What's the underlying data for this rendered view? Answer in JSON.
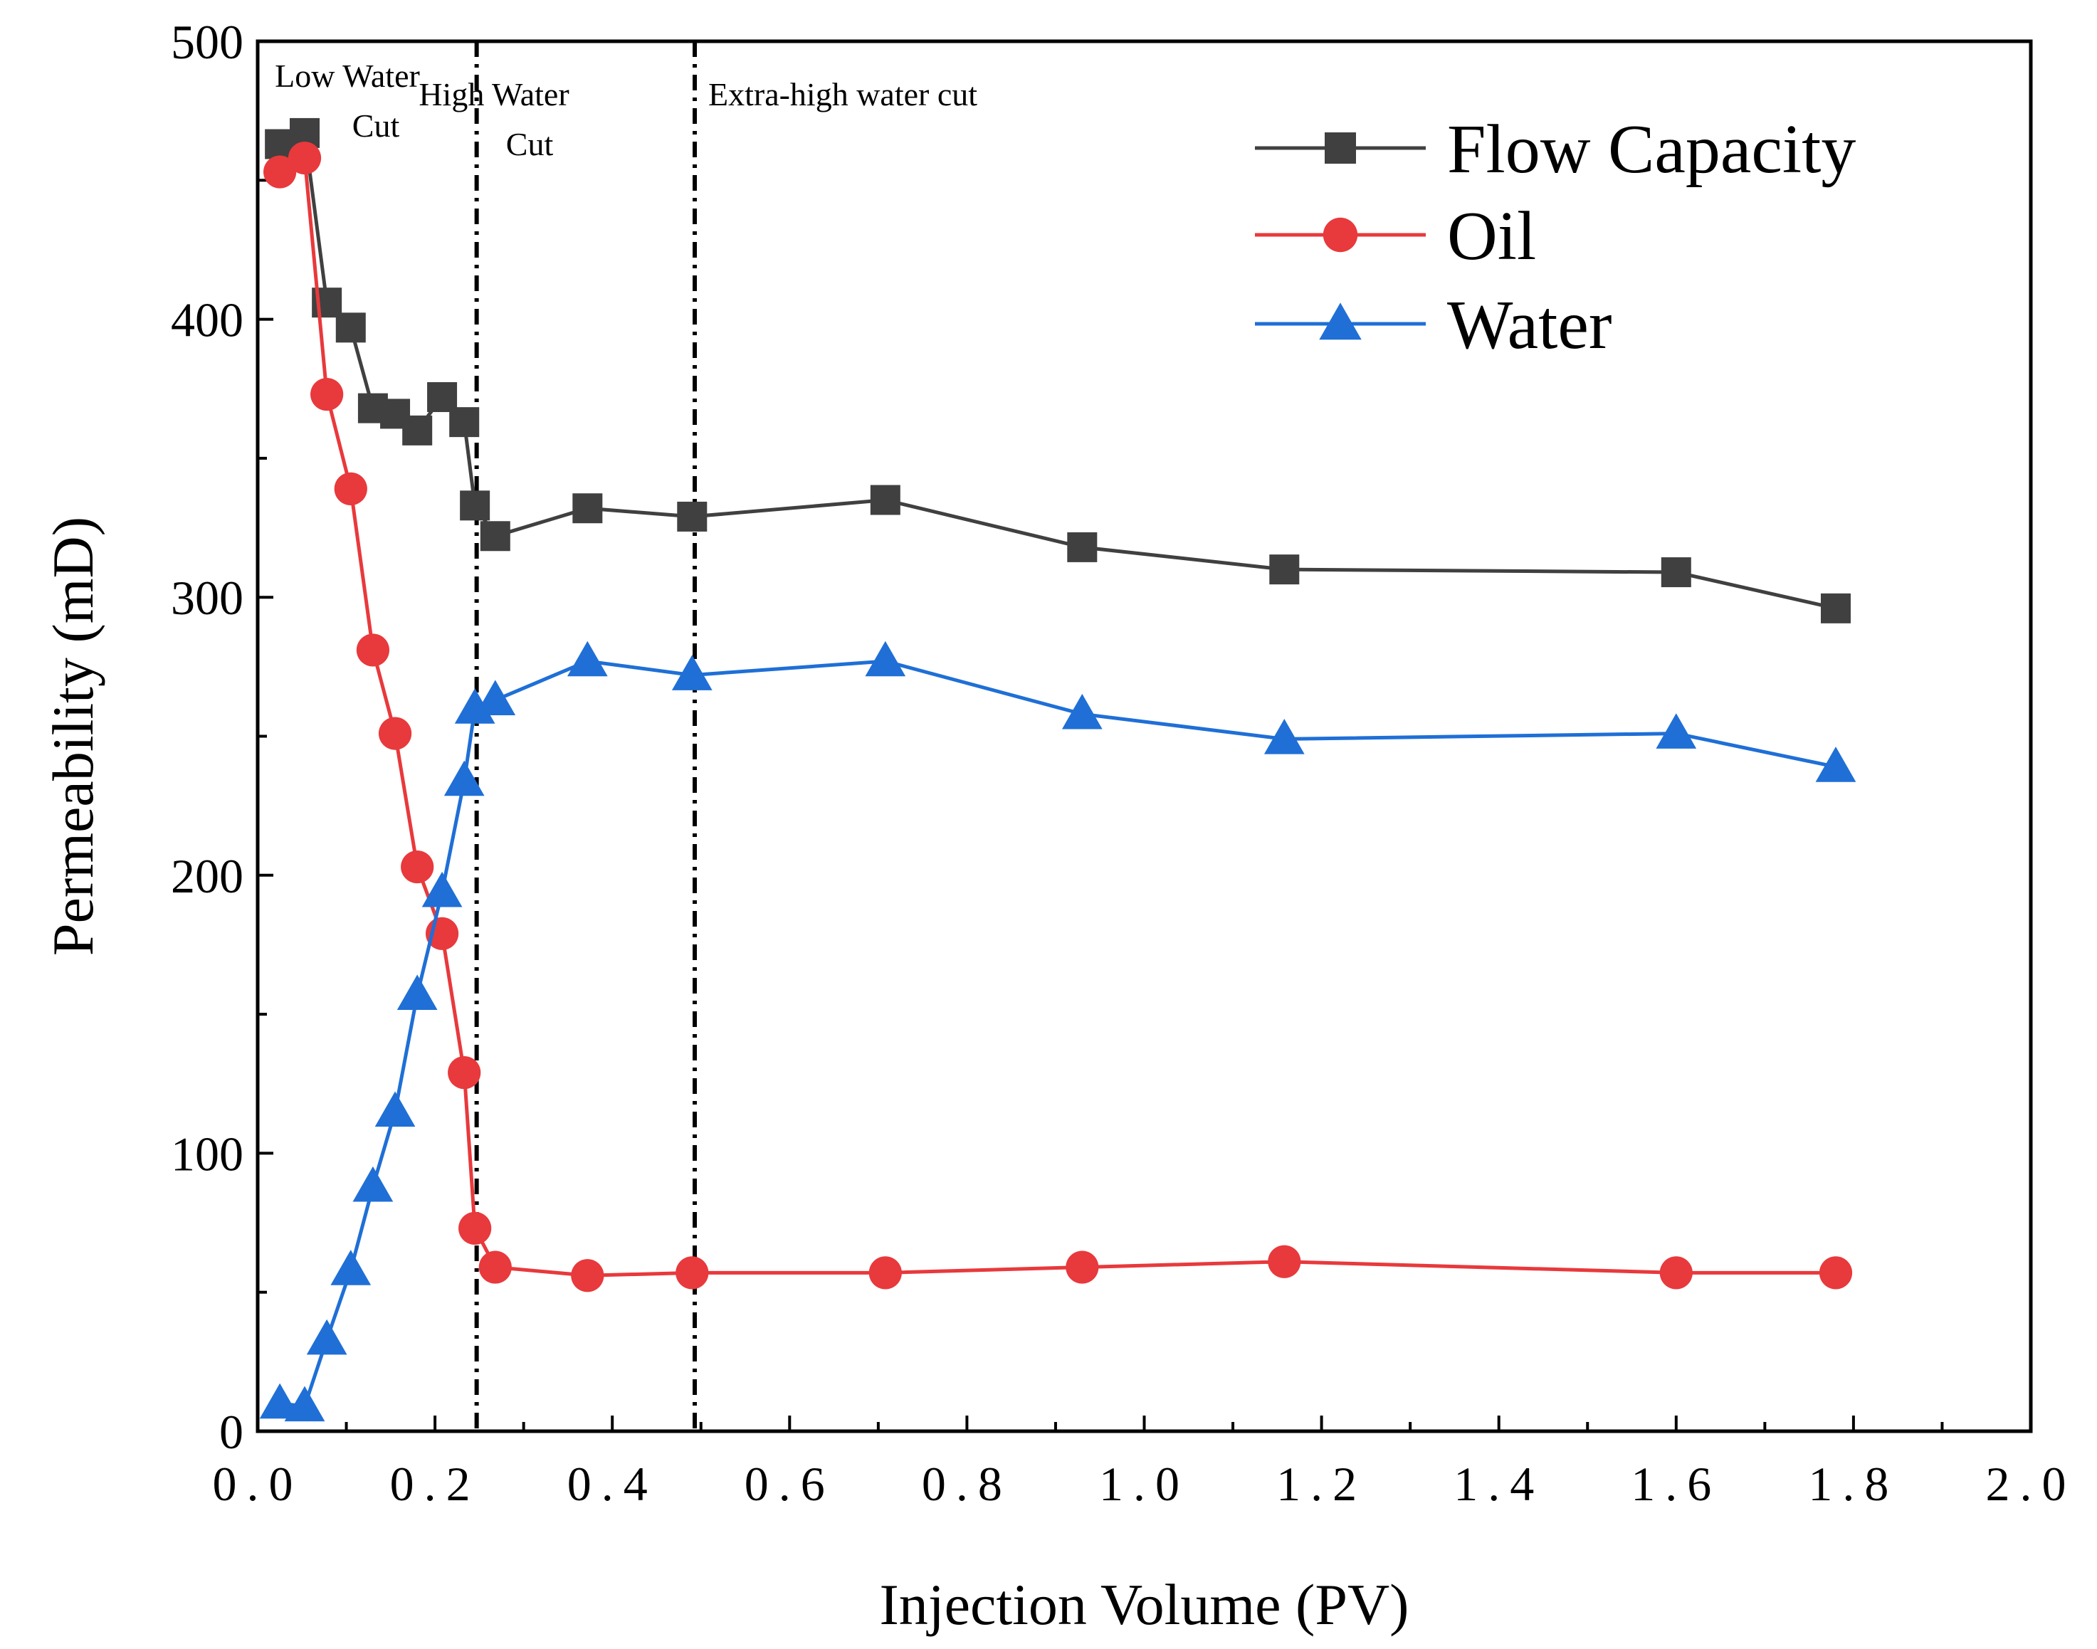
{
  "chart_data": {
    "type": "line",
    "title": "",
    "xlabel": "Injection Volume (PV)",
    "ylabel": "Permeability (mD)",
    "xlim": [
      0.0,
      2.0
    ],
    "ylim": [
      0,
      500
    ],
    "xticks": [
      0.0,
      0.2,
      0.4,
      0.6,
      0.8,
      1.0,
      1.2,
      1.4,
      1.6,
      1.8,
      2.0
    ],
    "xtick_labels": [
      "0.0",
      "0.2",
      "0.4",
      "0.6",
      "0.8",
      "1.0",
      "1.2",
      "1.4",
      "1.6",
      "1.8",
      "2.0"
    ],
    "yticks": [
      0,
      100,
      200,
      300,
      400,
      500
    ],
    "ytick_labels": [
      "0",
      "100",
      "200",
      "300",
      "400",
      "500"
    ],
    "grid": false,
    "legend_position": "top-right",
    "series": [
      {
        "name": "Flow Capacity",
        "color": "#404040",
        "marker": "square",
        "x": [
          0.025,
          0.053,
          0.078,
          0.105,
          0.13,
          0.155,
          0.18,
          0.208,
          0.233,
          0.245,
          0.268,
          0.372,
          0.49,
          0.708,
          0.93,
          1.158,
          1.6,
          1.78
        ],
        "y": [
          463,
          467,
          406,
          397,
          368,
          366,
          360,
          372,
          363,
          333,
          322,
          332,
          329,
          335,
          318,
          310,
          309,
          296
        ]
      },
      {
        "name": "Oil",
        "color": "#E8393C",
        "marker": "circle",
        "x": [
          0.025,
          0.053,
          0.078,
          0.105,
          0.13,
          0.155,
          0.18,
          0.208,
          0.233,
          0.245,
          0.268,
          0.372,
          0.49,
          0.708,
          0.93,
          1.158,
          1.6,
          1.78
        ],
        "y": [
          453,
          458,
          373,
          339,
          281,
          251,
          203,
          179,
          129,
          73,
          59,
          56,
          57,
          57,
          59,
          61,
          57,
          57
        ]
      },
      {
        "name": "Water",
        "color": "#1F6FD6",
        "marker": "triangle",
        "x": [
          0.025,
          0.053,
          0.078,
          0.105,
          0.13,
          0.155,
          0.18,
          0.208,
          0.233,
          0.245,
          0.268,
          0.372,
          0.49,
          0.708,
          0.93,
          1.158,
          1.6,
          1.78
        ],
        "y": [
          10,
          9,
          33,
          58,
          88,
          115,
          157,
          194,
          234,
          260,
          263,
          277,
          272,
          277,
          258,
          249,
          251,
          239
        ]
      }
    ],
    "vertical_lines": [
      {
        "x": 0.247,
        "style": "dash-dot"
      },
      {
        "x": 0.493,
        "style": "dash-dot"
      }
    ],
    "annotations": [
      {
        "id": "low",
        "lines": [
          "Low Water",
          "Cut"
        ]
      },
      {
        "id": "high",
        "lines": [
          "High Water",
          "Cut"
        ]
      },
      {
        "id": "extra",
        "lines": [
          "Extra-high water cut"
        ]
      }
    ]
  }
}
